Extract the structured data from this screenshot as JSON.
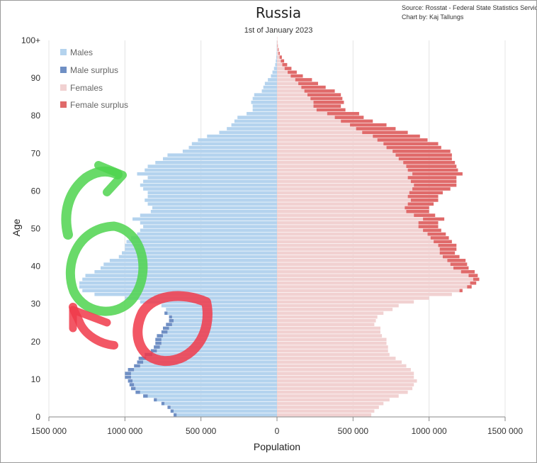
{
  "chart_data": {
    "type": "bar",
    "orientation": "horizontal-population-pyramid",
    "title": "Russia",
    "subtitle": "1st of January 2023",
    "source_lines": [
      "Source: Rosstat - Federal State Statistics Service",
      "Chart by: Kaj Tallungs"
    ],
    "xlabel": "Population",
    "ylabel": "Age",
    "x_ticks": [
      {
        "value": -1500000,
        "label": "1500 000"
      },
      {
        "value": -1000000,
        "label": "1000 000"
      },
      {
        "value": -500000,
        "label": "500 000"
      },
      {
        "value": 0,
        "label": "0"
      },
      {
        "value": 500000,
        "label": "500 000"
      },
      {
        "value": 1000000,
        "label": "1000 000"
      },
      {
        "value": 1500000,
        "label": "1500 000"
      }
    ],
    "y_ticks": [
      {
        "value": 0,
        "label": "0"
      },
      {
        "value": 10,
        "label": "10"
      },
      {
        "value": 20,
        "label": "20"
      },
      {
        "value": 30,
        "label": "30"
      },
      {
        "value": 40,
        "label": "40"
      },
      {
        "value": 50,
        "label": "50"
      },
      {
        "value": 60,
        "label": "60"
      },
      {
        "value": 70,
        "label": "70"
      },
      {
        "value": 80,
        "label": "80"
      },
      {
        "value": 90,
        "label": "90"
      },
      {
        "value": 100,
        "label": "100+"
      }
    ],
    "xlim": [
      -1500000,
      1500000
    ],
    "ylim": [
      0,
      100
    ],
    "grid": "vertical",
    "legend_position": "top-left",
    "colors": {
      "males": "#b4d3ee",
      "male_surplus": "#6f8fc4",
      "females": "#f1d1d1",
      "female_surplus": "#e06a6a"
    },
    "series": [
      {
        "name": "Males",
        "key": "males"
      },
      {
        "name": "Male surplus",
        "key": "male_surplus"
      },
      {
        "name": "Females",
        "key": "females"
      },
      {
        "name": "Female surplus",
        "key": "female_surplus"
      }
    ],
    "ages": [
      0,
      1,
      2,
      3,
      4,
      5,
      6,
      7,
      8,
      9,
      10,
      11,
      12,
      13,
      14,
      15,
      16,
      17,
      18,
      19,
      20,
      21,
      22,
      23,
      24,
      25,
      26,
      27,
      28,
      29,
      30,
      31,
      32,
      33,
      34,
      35,
      36,
      37,
      38,
      39,
      40,
      41,
      42,
      43,
      44,
      45,
      46,
      47,
      48,
      49,
      50,
      51,
      52,
      53,
      54,
      55,
      56,
      57,
      58,
      59,
      60,
      61,
      62,
      63,
      64,
      65,
      66,
      67,
      68,
      69,
      70,
      71,
      72,
      73,
      74,
      75,
      76,
      77,
      78,
      79,
      80,
      81,
      82,
      83,
      84,
      85,
      86,
      87,
      88,
      89,
      90,
      91,
      92,
      93,
      94,
      95,
      96,
      97,
      98,
      99,
      100
    ],
    "males": [
      660000,
      680000,
      700000,
      740000,
      790000,
      850000,
      900000,
      930000,
      940000,
      950000,
      960000,
      960000,
      940000,
      900000,
      880000,
      860000,
      820000,
      790000,
      770000,
      760000,
      760000,
      750000,
      720000,
      710000,
      690000,
      680000,
      690000,
      720000,
      730000,
      760000,
      900000,
      1000000,
      1200000,
      1280000,
      1300000,
      1300000,
      1280000,
      1260000,
      1200000,
      1160000,
      1140000,
      1100000,
      1040000,
      1020000,
      1000000,
      1000000,
      990000,
      960000,
      920000,
      900000,
      880000,
      900000,
      950000,
      900000,
      830000,
      820000,
      850000,
      870000,
      850000,
      850000,
      880000,
      900000,
      880000,
      850000,
      920000,
      870000,
      850000,
      800000,
      750000,
      720000,
      620000,
      580000,
      560000,
      520000,
      460000,
      380000,
      330000,
      300000,
      280000,
      260000,
      200000,
      160000,
      160000,
      170000,
      160000,
      150000,
      100000,
      90000,
      80000,
      60000,
      40000,
      30000,
      20000,
      12000,
      8000,
      5000,
      3000,
      2000,
      1000,
      500,
      300
    ],
    "females": [
      620000,
      640000,
      670000,
      700000,
      740000,
      800000,
      860000,
      890000,
      900000,
      920000,
      900000,
      900000,
      880000,
      850000,
      820000,
      780000,
      740000,
      730000,
      730000,
      720000,
      720000,
      690000,
      680000,
      680000,
      640000,
      650000,
      660000,
      700000,
      760000,
      800000,
      900000,
      1000000,
      1150000,
      1200000,
      1250000,
      1270000,
      1290000,
      1260000,
      1210000,
      1160000,
      1140000,
      1120000,
      1090000,
      1070000,
      1070000,
      1060000,
      1030000,
      1010000,
      990000,
      960000,
      930000,
      930000,
      960000,
      900000,
      850000,
      840000,
      860000,
      880000,
      860000,
      870000,
      890000,
      900000,
      880000,
      860000,
      890000,
      860000,
      850000,
      830000,
      800000,
      780000,
      760000,
      720000,
      700000,
      660000,
      630000,
      560000,
      520000,
      480000,
      420000,
      380000,
      330000,
      260000,
      240000,
      240000,
      220000,
      200000,
      180000,
      160000,
      140000,
      120000,
      90000,
      70000,
      50000,
      35000,
      25000,
      17000,
      10000,
      6000,
      3000,
      1500,
      800
    ],
    "female_surplus": [
      0,
      0,
      0,
      0,
      0,
      0,
      0,
      0,
      0,
      0,
      0,
      0,
      0,
      0,
      0,
      0,
      0,
      0,
      0,
      0,
      0,
      0,
      0,
      0,
      0,
      0,
      0,
      0,
      0,
      0,
      0,
      0,
      0,
      20000,
      30000,
      40000,
      40000,
      60000,
      90000,
      100000,
      110000,
      120000,
      110000,
      100000,
      110000,
      120000,
      120000,
      120000,
      120000,
      120000,
      130000,
      130000,
      140000,
      140000,
      150000,
      160000,
      170000,
      180000,
      200000,
      220000,
      250000,
      280000,
      300000,
      320000,
      330000,
      330000,
      330000,
      340000,
      350000,
      370000,
      380000,
      360000,
      360000,
      330000,
      310000,
      300000,
      260000,
      240000,
      210000,
      190000,
      210000,
      190000,
      180000,
      200000,
      210000,
      220000,
      200000,
      160000,
      130000,
      110000,
      80000,
      60000,
      45000,
      32000,
      22000,
      15000,
      8000,
      5000,
      2500,
      1200,
      600
    ],
    "male_surplus": [
      20000,
      20000,
      20000,
      20000,
      20000,
      30000,
      30000,
      30000,
      30000,
      30000,
      40000,
      40000,
      40000,
      40000,
      40000,
      50000,
      50000,
      40000,
      40000,
      40000,
      40000,
      40000,
      40000,
      40000,
      40000,
      30000,
      20000,
      20000,
      0,
      0,
      0,
      0,
      0,
      0,
      0,
      0,
      0,
      0,
      0,
      0,
      0,
      0,
      0,
      0,
      0,
      0,
      0,
      0,
      0,
      0,
      0,
      0,
      0,
      0,
      0,
      0,
      0,
      0,
      0,
      0,
      0,
      0,
      0,
      0,
      0,
      0,
      0,
      0,
      0,
      0,
      0,
      0,
      0,
      0,
      0,
      0,
      0,
      0,
      0,
      0,
      0,
      0,
      0,
      0,
      0,
      0,
      0,
      0,
      0,
      0,
      0,
      0,
      0,
      0,
      0,
      0,
      0,
      0,
      0,
      0,
      0
    ]
  }
}
